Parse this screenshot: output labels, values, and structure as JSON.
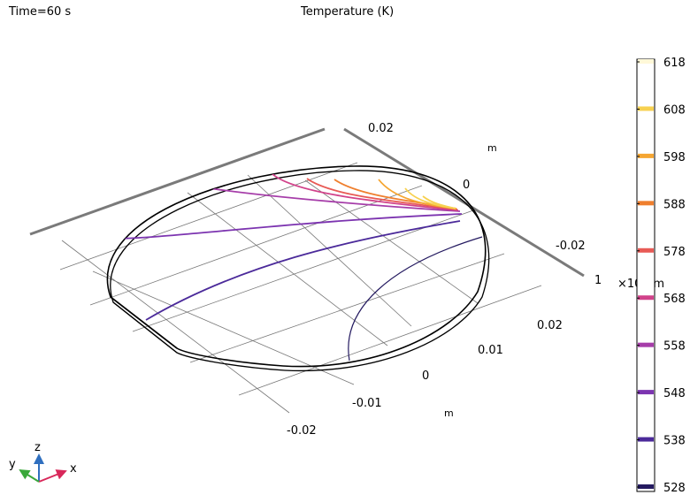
{
  "header": {
    "time": "Time=60 s",
    "title": "Temperature (K)"
  },
  "axes": {
    "y_ticks": [
      "0.02",
      "0",
      "-0.02"
    ],
    "y_unit": "m",
    "x_ticks": [
      "0.02",
      "0.01",
      "0",
      "-0.01",
      "-0.02"
    ],
    "x_unit": "m",
    "z_tick": "1",
    "z_unit_prefix": "×10",
    "z_unit_exp": "-4",
    "z_unit": "m"
  },
  "triad": {
    "x": "x",
    "y": "y",
    "z": "z"
  },
  "colorbar": {
    "ticks": [
      "618",
      "608",
      "598",
      "588",
      "578",
      "568",
      "558",
      "548",
      "538",
      "528"
    ],
    "colors": [
      "#fff8d8",
      "#f7d150",
      "#f5a632",
      "#ef7f2e",
      "#e85a55",
      "#d1428a",
      "#a63da9",
      "#7c34b0",
      "#4b2a9a",
      "#241a60"
    ]
  },
  "chart_data": {
    "type": "contour",
    "title": "Temperature (K)",
    "time": "Time=60 s",
    "levels": [
      618,
      608,
      598,
      588,
      578,
      568,
      558,
      548,
      538,
      528
    ],
    "range": [
      528,
      618
    ]
  }
}
